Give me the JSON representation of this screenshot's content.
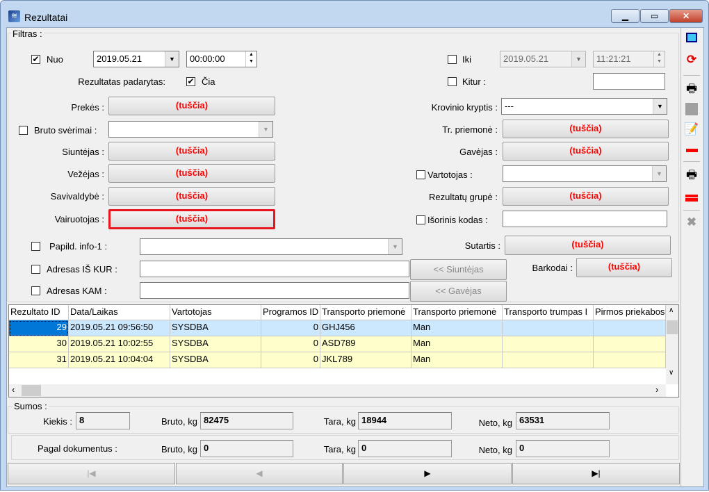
{
  "window": {
    "title": "Rezultatai",
    "minimize": "▁",
    "maximize": "▭",
    "close": "✕"
  },
  "filter": {
    "group_label": "Filtras :",
    "from": {
      "label": "Nuo",
      "checked": true,
      "date": "2019.05.21",
      "time": "00:00:00"
    },
    "to": {
      "label": "Iki",
      "checked": false,
      "date": "2019.05.21",
      "time": "11:21:21"
    },
    "made_label": "Rezultatas padarytas:",
    "here": {
      "label": "Čia",
      "checked": true
    },
    "elsewhere": {
      "label": "Kitur :",
      "checked": false,
      "value": ""
    },
    "empty": "(tuščia)",
    "goods_label": "Prekės :",
    "gross_label": "Bruto svėrimai :",
    "sender_label": "Siuntėjas :",
    "carrier_label": "Vežėjas :",
    "municipality_label": "Savivaldybė :",
    "driver_label": "Vairuotojas :",
    "extra_info_label": "Papild. info-1 :",
    "addr_from_label": "Adresas IŠ KUR :",
    "addr_to_label": "Adresas KAM :",
    "sender_btn": "<< Siuntėjas",
    "receiver_btn": "<< Gavėjas",
    "direction_label": "Krovinio kryptis :",
    "direction_value": "---",
    "vehicle_label": "Tr. priemonė :",
    "receiver_label": "Gavėjas :",
    "user_label": "Vartotojas :",
    "group_res_label": "Rezultatų grupė :",
    "ext_code_label": "Išorinis kodas :",
    "contract_label": "Sutartis :",
    "barcodes_label": "Barkodai :"
  },
  "table": {
    "columns": [
      "Rezultato ID",
      "Data/Laikas",
      "Vartotojas",
      "Programos ID",
      "Transporto priemonė",
      "Transporto priemonė",
      "Transporto trumpas I",
      "Pirmos priekabos"
    ],
    "rows": [
      [
        "29",
        "2019.05.21 09:56:50",
        "SYSDBA",
        "0",
        "GHJ456",
        "Man",
        "",
        ""
      ],
      [
        "30",
        "2019.05.21 10:02:55",
        "SYSDBA",
        "0",
        "ASD789",
        "Man",
        "",
        ""
      ],
      [
        "31",
        "2019.05.21 10:04:04",
        "SYSDBA",
        "0",
        "JKL789",
        "Man",
        "",
        ""
      ]
    ],
    "selected_row": 0
  },
  "sums": {
    "group_label": "Sumos :",
    "count_label": "Kiekis :",
    "count": "8",
    "gross_label": "Bruto, kg",
    "gross": "82475",
    "tare_label": "Tara, kg",
    "tare": "18944",
    "net_label": "Neto, kg",
    "net": "63531"
  },
  "docs": {
    "label": "Pagal dokumentus :",
    "gross_label": "Bruto, kg",
    "gross": "0",
    "tare_label": "Tara, kg",
    "tare": "0",
    "net_label": "Neto, kg",
    "net": "0"
  },
  "nav": {
    "first": "|◀",
    "prev": "◀",
    "next": "▶",
    "last": "▶|"
  },
  "colors": {
    "empty_text": "#ff0000",
    "row_selected": "#cce8ff",
    "row_alt": "#ffffcc"
  }
}
